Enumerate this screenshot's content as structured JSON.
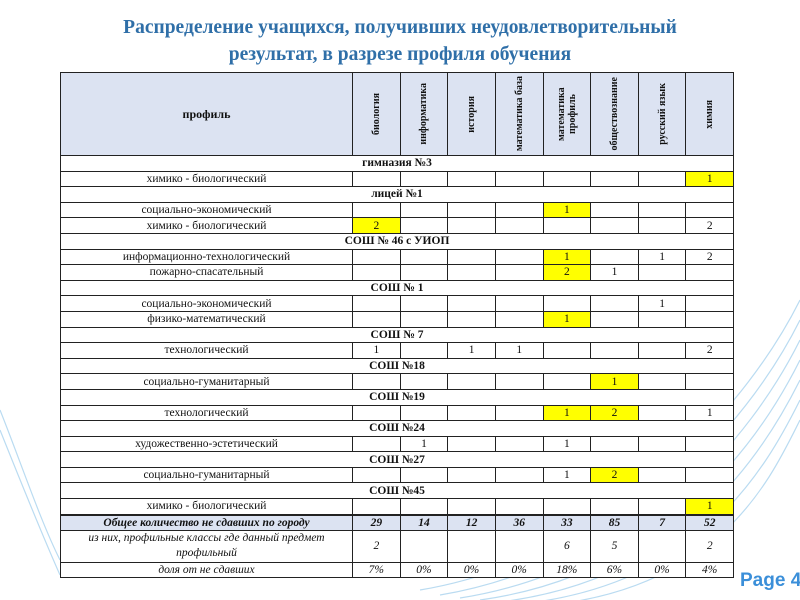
{
  "title_line1": "Распределение учащихся, получивших неудовлетворительный",
  "title_line2": "результат, в разрезе профиля обучения",
  "highlight_color": "#ffff00",
  "header_color": "#dce3f2",
  "table": {
    "profile_header": "профиль",
    "columns": [
      "биология",
      "информатика",
      "история",
      "математика база",
      "математика профиль",
      "обществознание",
      "русский язык",
      "химия"
    ],
    "sections": [
      {
        "school": "гимназия №3",
        "rows": [
          {
            "profile": "химико - биологический",
            "values": [
              "",
              "",
              "",
              "",
              "",
              "",
              "",
              "1"
            ],
            "highlight": [
              7
            ]
          }
        ]
      },
      {
        "school": "лицей №1",
        "rows": [
          {
            "profile": "социально-экономический",
            "values": [
              "",
              "",
              "",
              "",
              "1",
              "",
              "",
              ""
            ],
            "highlight": [
              4
            ]
          },
          {
            "profile": "химико - биологический",
            "values": [
              "2",
              "",
              "",
              "",
              "",
              "",
              "",
              "2"
            ],
            "highlight": [
              0
            ]
          }
        ]
      },
      {
        "school": "СОШ №  46 с УИОП",
        "rows": [
          {
            "profile": "информационно-технологический",
            "values": [
              "",
              "",
              "",
              "",
              "1",
              "",
              "1",
              "2"
            ],
            "highlight": [
              4
            ]
          },
          {
            "profile": "пожарно-спасательный",
            "values": [
              "",
              "",
              "",
              "",
              "2",
              "1",
              "",
              ""
            ],
            "highlight": [
              4
            ]
          }
        ]
      },
      {
        "school": "СОШ № 1",
        "rows": [
          {
            "profile": "социально-экономический",
            "values": [
              "",
              "",
              "",
              "",
              "",
              "",
              "1",
              ""
            ],
            "highlight": []
          },
          {
            "profile": "физико-математический",
            "values": [
              "",
              "",
              "",
              "",
              "1",
              "",
              "",
              ""
            ],
            "highlight": [
              4
            ]
          }
        ]
      },
      {
        "school": "СОШ № 7",
        "rows": [
          {
            "profile": "технологический",
            "values": [
              "1",
              "",
              "1",
              "1",
              "",
              "",
              "",
              "2"
            ],
            "highlight": []
          }
        ]
      },
      {
        "school": "СОШ №18",
        "rows": [
          {
            "profile": "социально-гуманитарный",
            "values": [
              "",
              "",
              "",
              "",
              "",
              "1",
              "",
              ""
            ],
            "highlight": [
              5
            ]
          }
        ]
      },
      {
        "school": "СОШ №19",
        "rows": [
          {
            "profile": "технологический",
            "values": [
              "",
              "",
              "",
              "",
              "1",
              "2",
              "",
              "1"
            ],
            "highlight": [
              4,
              5
            ]
          }
        ]
      },
      {
        "school": "СОШ №24",
        "rows": [
          {
            "profile": "художественно-эстетический",
            "values": [
              "",
              "1",
              "",
              "",
              "1",
              "",
              "",
              ""
            ],
            "highlight": []
          }
        ]
      },
      {
        "school": "СОШ №27",
        "rows": [
          {
            "profile": "социально-гуманитарный",
            "values": [
              "",
              "",
              "",
              "",
              "1",
              "2",
              "",
              ""
            ],
            "highlight": [
              5
            ]
          }
        ]
      },
      {
        "school": "СОШ №45",
        "rows": [
          {
            "profile": "химико - биологический",
            "values": [
              "",
              "",
              "",
              "",
              "",
              "",
              "",
              "1"
            ],
            "highlight": [
              7
            ]
          }
        ]
      }
    ],
    "total": {
      "label": "Общее количество не сдавших по городу",
      "values": [
        "29",
        "14",
        "12",
        "36",
        "33",
        "85",
        "7",
        "52"
      ]
    },
    "profile_classes": {
      "label": "из них, профильные классы где данный предмет профильный",
      "values": [
        "2",
        "",
        "",
        "",
        "6",
        "5",
        "",
        "2"
      ]
    },
    "share": {
      "label": "доля от не сдавших",
      "values": [
        "7%",
        "0%",
        "0%",
        "0%",
        "18%",
        "6%",
        "0%",
        "4%"
      ]
    }
  },
  "page_label": "Page 4"
}
